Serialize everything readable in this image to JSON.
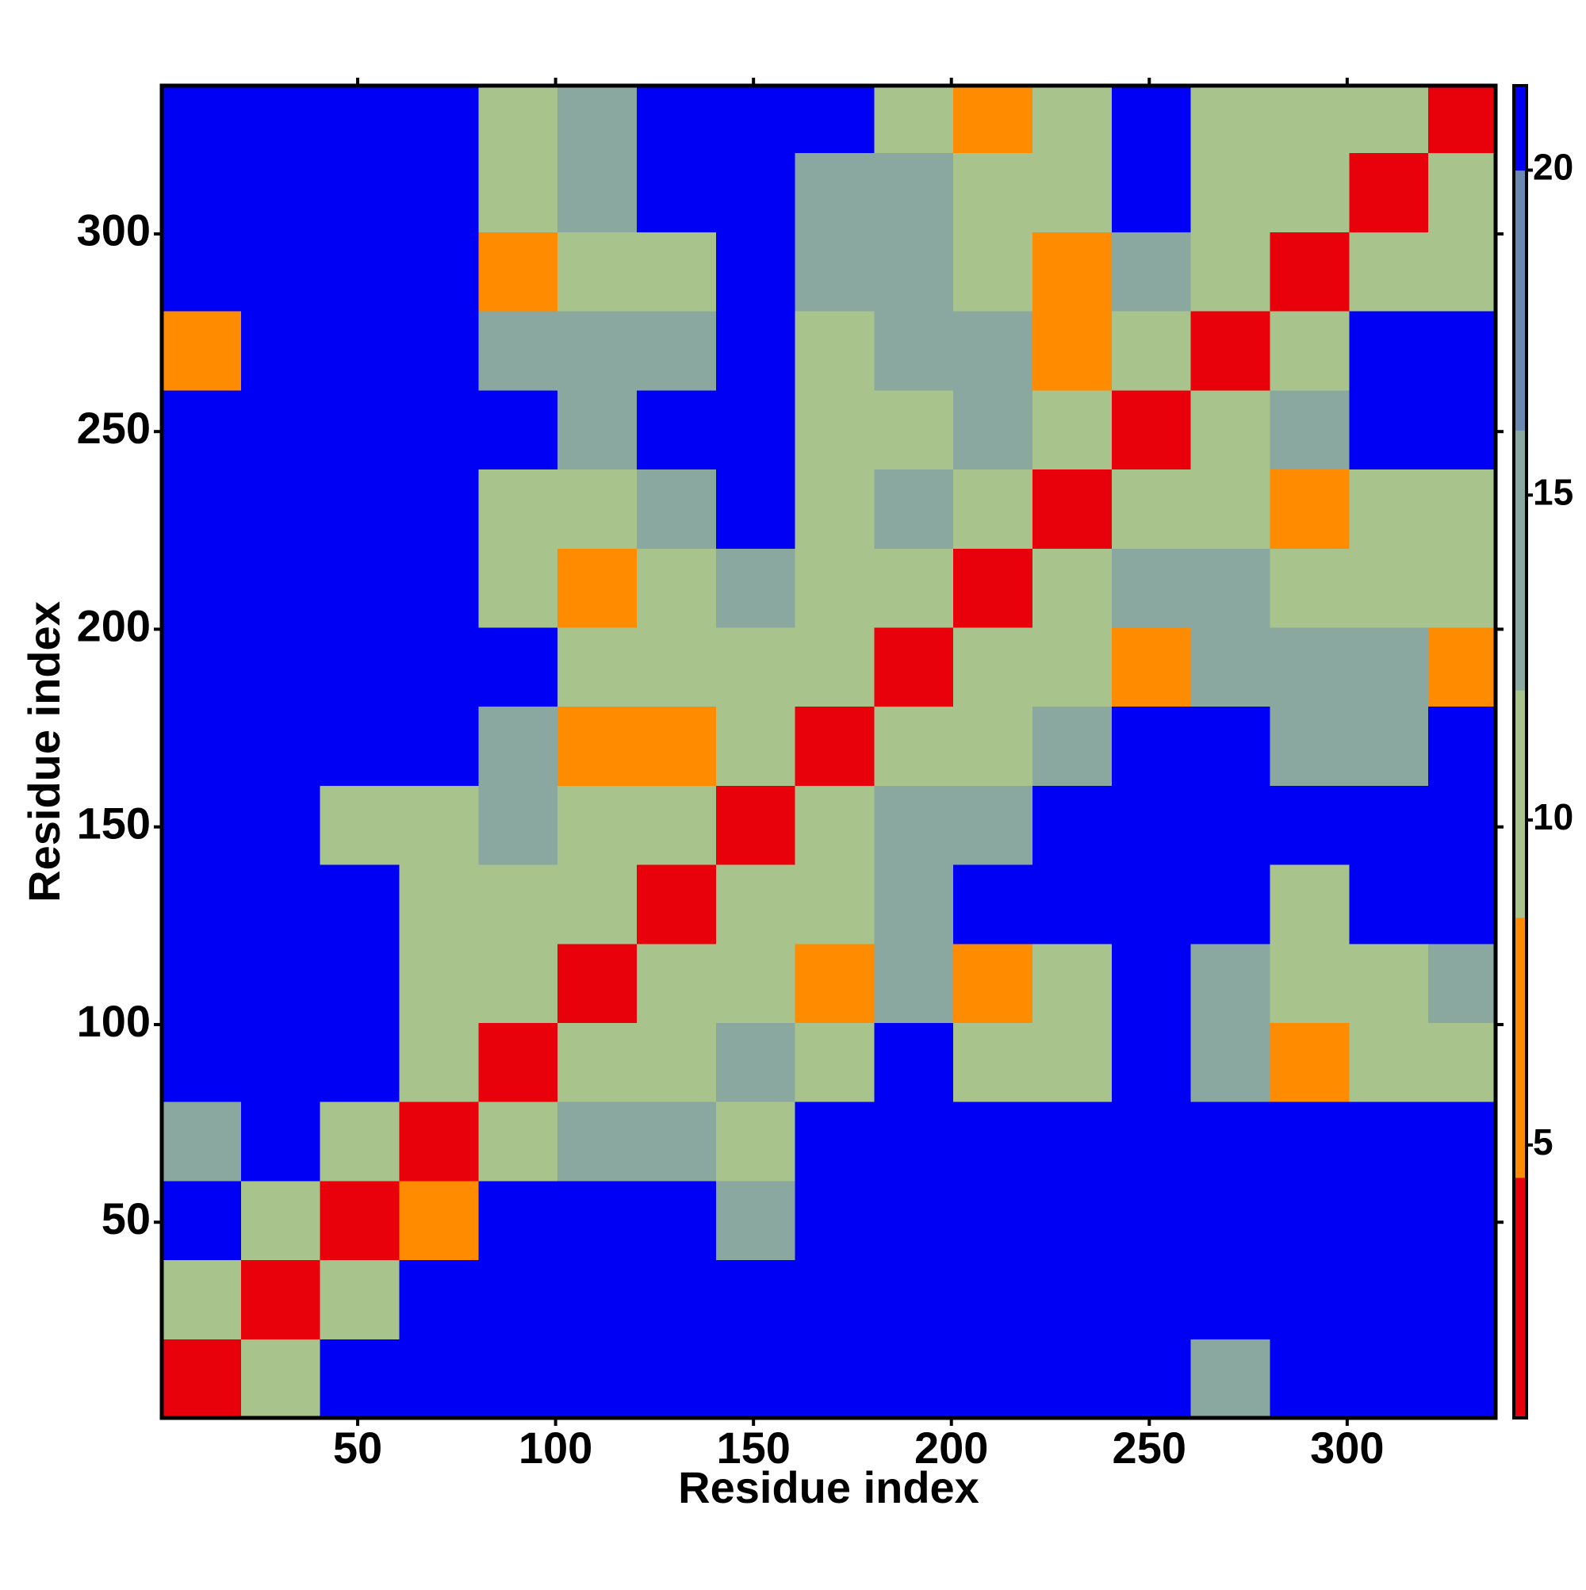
{
  "chart_data": {
    "type": "heatmap",
    "x_label": "Residue index",
    "y_label": "Residue index",
    "x_bins": [
      0.5,
      20.5,
      40.5,
      60.5,
      80.5,
      100.5,
      120.5,
      140.5,
      160.5,
      180.5,
      200.5,
      220.5,
      240.5,
      260.5,
      280.5,
      300.5,
      320.5,
      337.5
    ],
    "y_bins": [
      0.5,
      20.5,
      40.5,
      60.5,
      80.5,
      100.5,
      120.5,
      140.5,
      160.5,
      180.5,
      200.5,
      220.5,
      240.5,
      260.5,
      280.5,
      300.5,
      320.5,
      337.5
    ],
    "values": [
      [
        3,
        10,
        21,
        21,
        21,
        21,
        21,
        21,
        21,
        21,
        21,
        21,
        21,
        14,
        21,
        21,
        21
      ],
      [
        10,
        3,
        10,
        21,
        21,
        21,
        21,
        21,
        21,
        21,
        21,
        21,
        21,
        21,
        21,
        21,
        21
      ],
      [
        21,
        10,
        3,
        7,
        21,
        21,
        21,
        14,
        21,
        21,
        21,
        21,
        21,
        21,
        21,
        21,
        21
      ],
      [
        14,
        21,
        10,
        3,
        10,
        14,
        14,
        10,
        21,
        21,
        21,
        21,
        21,
        21,
        21,
        21,
        21
      ],
      [
        21,
        21,
        21,
        10,
        3,
        10,
        10,
        14,
        10,
        21,
        10,
        10,
        21,
        14,
        7,
        10,
        10
      ],
      [
        21,
        21,
        21,
        10,
        10,
        3,
        10,
        10,
        7,
        14,
        7,
        10,
        21,
        14,
        10,
        10,
        14
      ],
      [
        21,
        21,
        21,
        10,
        10,
        10,
        3,
        10,
        10,
        14,
        21,
        21,
        21,
        21,
        10,
        21,
        21
      ],
      [
        21,
        21,
        10,
        10,
        14,
        10,
        10,
        3,
        10,
        14,
        14,
        21,
        21,
        21,
        21,
        21,
        21
      ],
      [
        21,
        21,
        21,
        21,
        14,
        7,
        7,
        10,
        3,
        10,
        10,
        14,
        21,
        21,
        14,
        14,
        21
      ],
      [
        21,
        21,
        21,
        21,
        21,
        10,
        10,
        10,
        10,
        3,
        10,
        10,
        7,
        14,
        14,
        14,
        7
      ],
      [
        21,
        21,
        21,
        21,
        10,
        7,
        10,
        14,
        10,
        10,
        3,
        10,
        14,
        14,
        10,
        10,
        10
      ],
      [
        21,
        21,
        21,
        21,
        10,
        10,
        14,
        21,
        10,
        14,
        10,
        3,
        10,
        10,
        7,
        10,
        10
      ],
      [
        21,
        21,
        21,
        21,
        21,
        14,
        21,
        21,
        10,
        10,
        14,
        10,
        3,
        10,
        14,
        21,
        21
      ],
      [
        7,
        21,
        21,
        21,
        14,
        14,
        14,
        21,
        10,
        14,
        14,
        7,
        10,
        3,
        10,
        21,
        21
      ],
      [
        21,
        21,
        21,
        21,
        7,
        10,
        10,
        21,
        14,
        14,
        10,
        7,
        14,
        10,
        3,
        10,
        10
      ],
      [
        21,
        21,
        21,
        21,
        10,
        14,
        21,
        21,
        14,
        14,
        10,
        10,
        21,
        10,
        10,
        3,
        10
      ],
      [
        21,
        21,
        21,
        21,
        10,
        14,
        21,
        21,
        21,
        10,
        7,
        10,
        21,
        10,
        10,
        10,
        3
      ]
    ],
    "xlim": [
      0.5,
      337.5
    ],
    "ylim": [
      0.5,
      337.5
    ],
    "xticks": [
      50,
      100,
      150,
      200,
      250,
      300
    ],
    "yticks": [
      50,
      100,
      150,
      200,
      250,
      300
    ],
    "colorbar": {
      "lim": [
        0.8,
        21.3
      ],
      "ticks": [
        5,
        10,
        15,
        20
      ]
    },
    "colorscale": [
      [
        4.5,
        "#e8000b"
      ],
      [
        8.5,
        "#ff8c00"
      ],
      [
        12,
        "#a8c48c"
      ],
      [
        16,
        "#8aa8a0"
      ],
      [
        20,
        "#6a88b0"
      ],
      [
        21.3,
        "#0000f5"
      ]
    ]
  }
}
